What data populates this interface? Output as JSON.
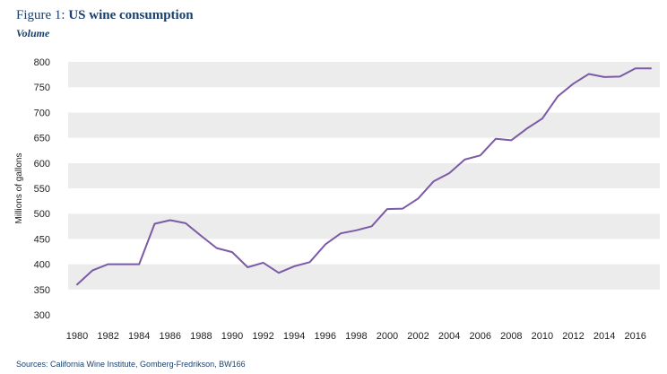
{
  "figure": {
    "label": "Figure 1:",
    "title": "US wine consumption",
    "subtitle": "Volume",
    "source": "Sources: California Wine Institute, Gomberg-Fredrikson, BW166"
  },
  "colors": {
    "line": "#7b5aa6",
    "band": "#ececec",
    "title": "#1b3f6b"
  },
  "chart_data": {
    "type": "line",
    "title": "US wine consumption",
    "subtitle": "Volume",
    "xlabel": "",
    "ylabel": "Millions of gallons",
    "xlim": [
      1980,
      2017
    ],
    "ylim": [
      300,
      800
    ],
    "grid": "alternating horizontal bands",
    "x_ticks": [
      1980,
      1982,
      1984,
      1986,
      1988,
      1990,
      1992,
      1994,
      1996,
      1998,
      2000,
      2002,
      2004,
      2006,
      2008,
      2010,
      2012,
      2014,
      2016
    ],
    "y_ticks": [
      300,
      350,
      400,
      450,
      500,
      550,
      600,
      650,
      700,
      750,
      800
    ],
    "series": [
      {
        "name": "US wine consumption",
        "x": [
          1980,
          1981,
          1982,
          1983,
          1984,
          1985,
          1986,
          1987,
          1988,
          1989,
          1990,
          1991,
          1992,
          1993,
          1994,
          1995,
          1996,
          1997,
          1998,
          1999,
          2000,
          2001,
          2002,
          2003,
          2004,
          2005,
          2006,
          2007,
          2008,
          2009,
          2010,
          2011,
          2012,
          2013,
          2014,
          2015,
          2016,
          2017
        ],
        "values": [
          360,
          388,
          400,
          400,
          400,
          480,
          487,
          481,
          456,
          432,
          424,
          394,
          403,
          383,
          396,
          404,
          439,
          461,
          467,
          475,
          509,
          510,
          530,
          564,
          580,
          607,
          615,
          648,
          645,
          668,
          688,
          732,
          757,
          776,
          770,
          771,
          787,
          787
        ]
      }
    ]
  }
}
